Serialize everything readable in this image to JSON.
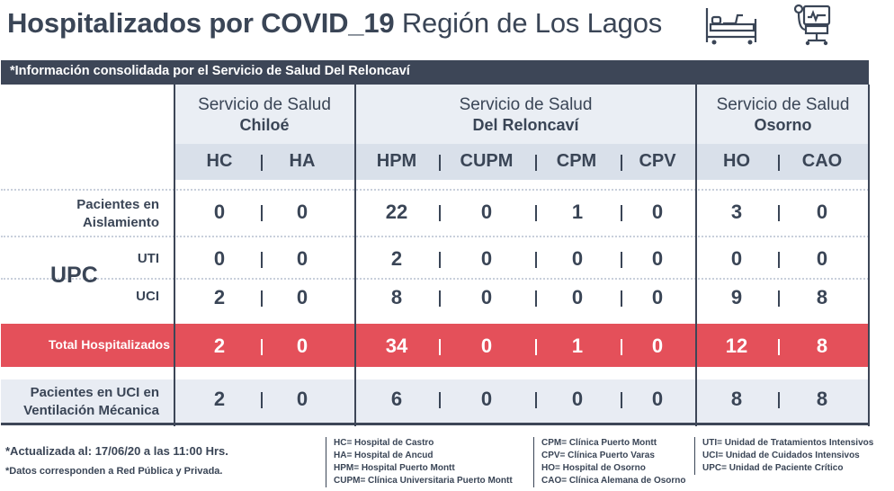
{
  "title": {
    "bold": "Hospitalizados por COVID_19",
    "light": "Región de Los Lagos"
  },
  "icons": [
    "hospital-bed-icon",
    "ventilator-icon"
  ],
  "info_bar": "*Información consolidada por el Servicio de Salud Del Reloncaví",
  "services": [
    {
      "line1": "Servicio de Salud",
      "line2": "Chiloé"
    },
    {
      "line1": "Servicio de Salud",
      "line2": "Del Reloncaví"
    },
    {
      "line1": "Servicio de Salud",
      "line2": "Osorno"
    }
  ],
  "codes": [
    "HC",
    "HA",
    "HPM",
    "CUPM",
    "CPM",
    "CPV",
    "HO",
    "CAO"
  ],
  "rows": {
    "aislamiento": {
      "label1": "Pacientes en",
      "label2": "Aislamiento",
      "values": [
        "0",
        "0",
        "22",
        "0",
        "1",
        "0",
        "3",
        "0"
      ]
    },
    "upc_label": "UPC",
    "uti": {
      "label": "UTI",
      "values": [
        "0",
        "0",
        "2",
        "0",
        "0",
        "0",
        "0",
        "0"
      ]
    },
    "uci": {
      "label": "UCI",
      "values": [
        "2",
        "0",
        "8",
        "0",
        "0",
        "0",
        "9",
        "8"
      ]
    },
    "total": {
      "label": "Total Hospitalizados",
      "values": [
        "2",
        "0",
        "34",
        "0",
        "1",
        "0",
        "12",
        "8"
      ]
    },
    "ventilacion": {
      "label1": "Pacientes en UCI en",
      "label2": "Ventilación Mécanica",
      "values": [
        "2",
        "0",
        "6",
        "0",
        "0",
        "0",
        "8",
        "8"
      ]
    }
  },
  "notes": {
    "updated": "*Actualizada al: 17/06/20 a las 11:00 Hrs.",
    "source": "*Datos corresponden a Red Pública y Privada."
  },
  "legend": {
    "col1": [
      "HC= Hospital de Castro",
      "HA= Hospital de Ancud",
      "HPM= Hospital Puerto Montt",
      "CUPM= Clínica Universitaria Puerto Montt"
    ],
    "col2": [
      "CPM= Clínica Puerto Montt",
      "CPV= Clínica Puerto Varas",
      "HO= Hospital de Osorno",
      "CAO= Clínica Alemana de Osorno"
    ],
    "col3": [
      "UTI= Unidad de Tratamientos Intensivos",
      "UCI= Unidad de Cuidados Intensivos",
      "UPC= Unidad de Paciente Crítico"
    ]
  },
  "colors": {
    "dark": "#3d4657",
    "total_red": "#e4505a",
    "header_bg": "#eaeef4",
    "codes_bg": "#d9e0ea"
  }
}
